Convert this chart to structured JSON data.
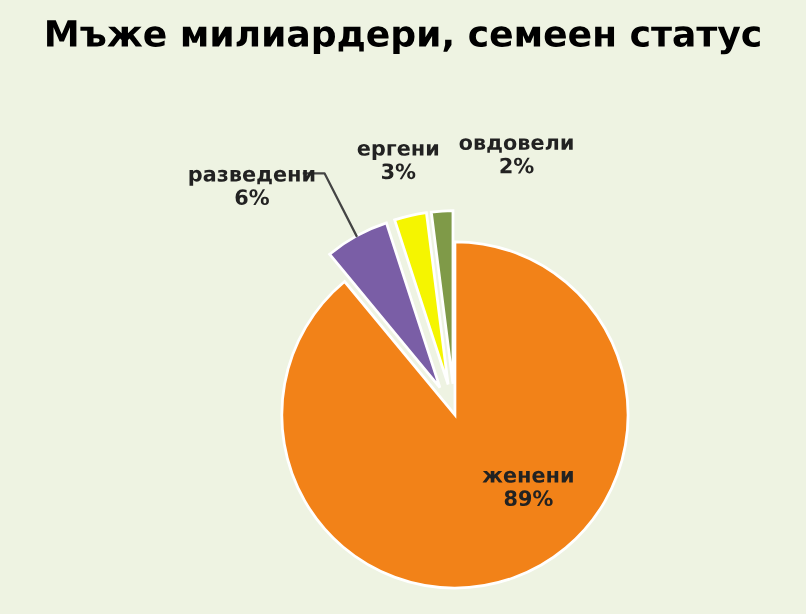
{
  "chart_data": {
    "type": "pie",
    "title": "Мъже милиардери, семеен статус",
    "categories": [
      "женени",
      "разведени",
      "ергени",
      "овдовели"
    ],
    "values": [
      89,
      6,
      3,
      2
    ],
    "value_labels": [
      "89%",
      "6%",
      "3%",
      "2%"
    ],
    "colors": [
      "#f28218",
      "#7a5ea6",
      "#f5f500",
      "#7f9a48"
    ]
  }
}
